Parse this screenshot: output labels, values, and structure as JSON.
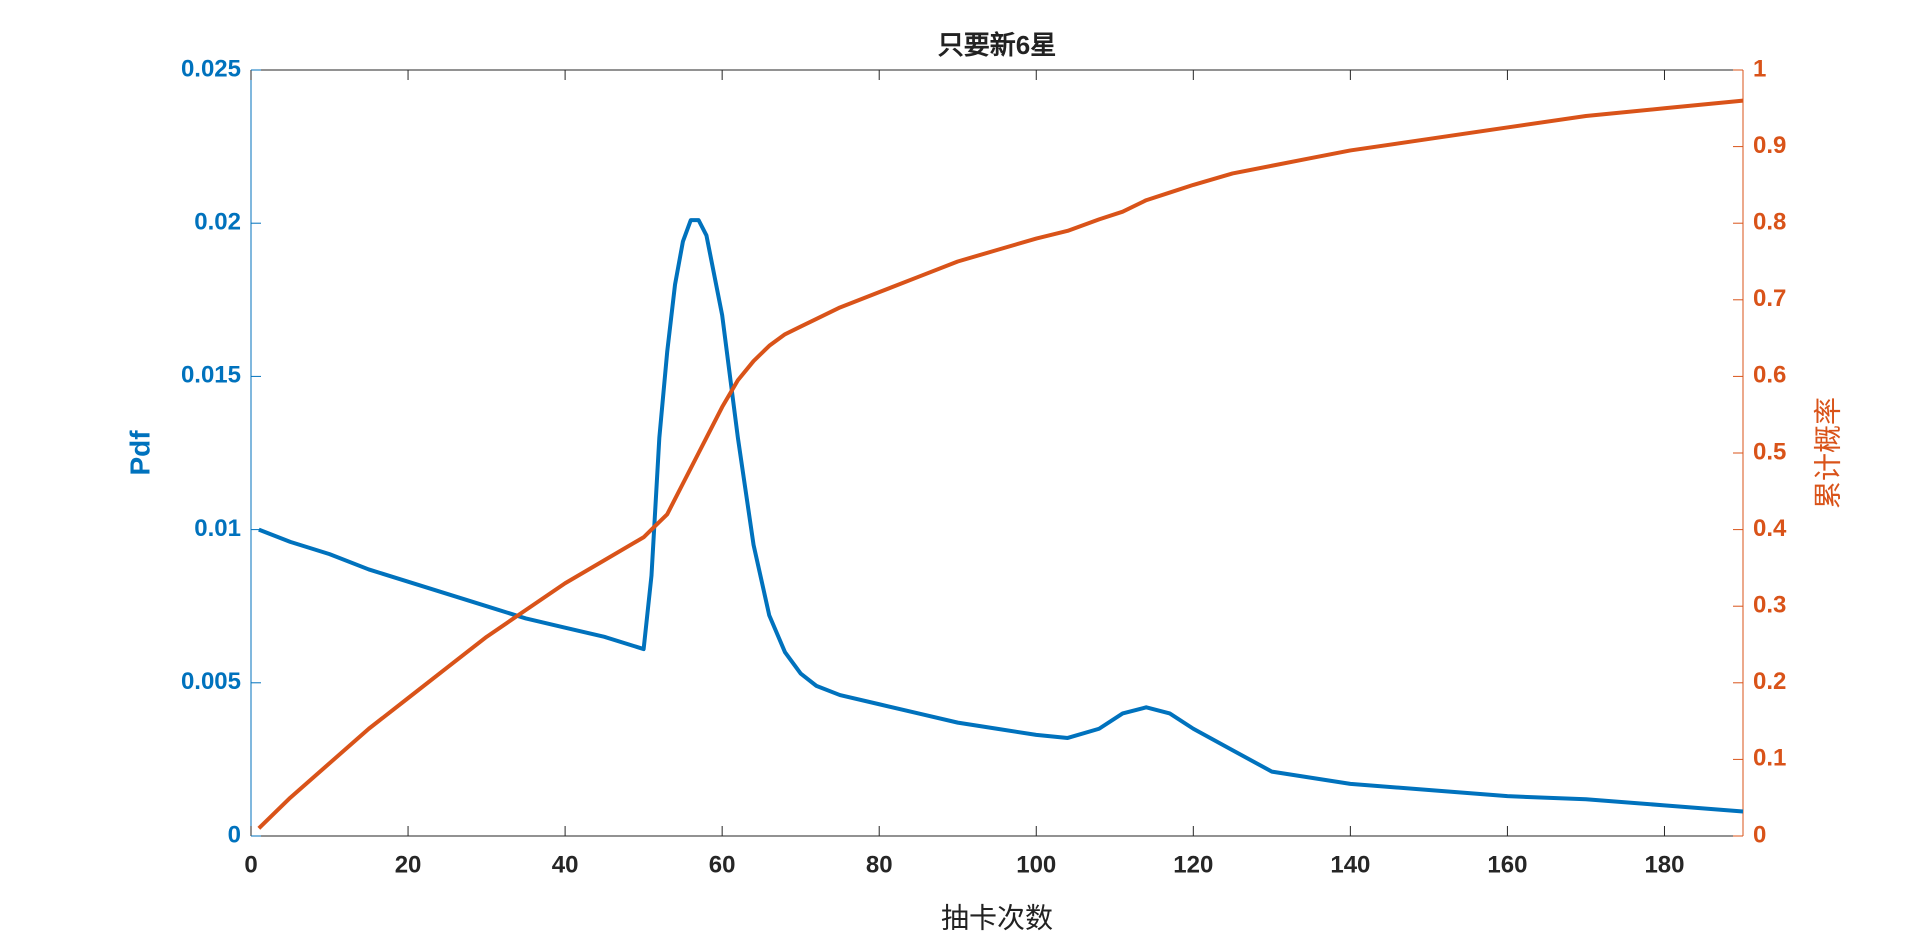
{
  "chart_data": {
    "type": "line",
    "title": "只要新6星",
    "xlabel": "抽卡次数",
    "ylabel": "Pdf",
    "y2label": "累计概率",
    "x": [
      1,
      5,
      10,
      15,
      20,
      25,
      30,
      35,
      40,
      45,
      50,
      51,
      52,
      53,
      54,
      55,
      56,
      57,
      58,
      60,
      62,
      64,
      66,
      68,
      70,
      72,
      75,
      80,
      85,
      90,
      95,
      100,
      104,
      108,
      111,
      114,
      117,
      120,
      125,
      130,
      135,
      140,
      150,
      160,
      170,
      180,
      190
    ],
    "series": [
      {
        "name": "Pdf",
        "color": "#0072BD",
        "axis": "y",
        "values": [
          0.01,
          0.0096,
          0.0092,
          0.0087,
          0.0083,
          0.0079,
          0.0075,
          0.0071,
          0.0068,
          0.0065,
          0.0061,
          0.0085,
          0.013,
          0.0158,
          0.018,
          0.0194,
          0.0201,
          0.0201,
          0.0196,
          0.017,
          0.013,
          0.0095,
          0.0072,
          0.006,
          0.0053,
          0.0049,
          0.0046,
          0.0043,
          0.004,
          0.0037,
          0.0035,
          0.0033,
          0.0032,
          0.0035,
          0.004,
          0.0042,
          0.004,
          0.0035,
          0.0028,
          0.0021,
          0.0019,
          0.0017,
          0.0015,
          0.0013,
          0.0012,
          0.001,
          0.0008
        ]
      },
      {
        "name": "累计概率",
        "color": "#D95319",
        "axis": "y2",
        "values": [
          0.01,
          0.05,
          0.095,
          0.14,
          0.18,
          0.22,
          0.26,
          0.295,
          0.33,
          0.36,
          0.39,
          0.4,
          0.41,
          0.42,
          0.44,
          0.46,
          0.48,
          0.5,
          0.52,
          0.56,
          0.595,
          0.62,
          0.64,
          0.655,
          0.665,
          0.675,
          0.69,
          0.71,
          0.73,
          0.75,
          0.765,
          0.78,
          0.79,
          0.805,
          0.815,
          0.83,
          0.84,
          0.85,
          0.865,
          0.875,
          0.885,
          0.895,
          0.91,
          0.925,
          0.94,
          0.95,
          0.96
        ]
      }
    ],
    "xlim": [
      0,
      190
    ],
    "xticks": [
      0,
      20,
      40,
      60,
      80,
      100,
      120,
      140,
      160,
      180
    ],
    "ylim": [
      0,
      0.025
    ],
    "yticks": [
      0,
      0.005,
      0.01,
      0.015,
      0.02,
      0.025
    ],
    "y2lim": [
      0,
      1
    ],
    "y2ticks": [
      0,
      0.1,
      0.2,
      0.3,
      0.4,
      0.5,
      0.6,
      0.7,
      0.8,
      0.9,
      1
    ]
  }
}
